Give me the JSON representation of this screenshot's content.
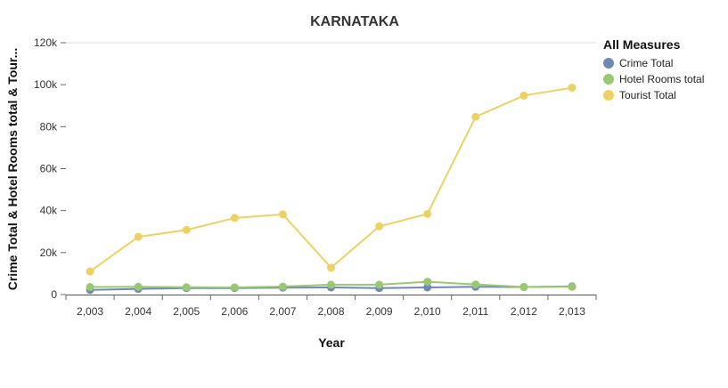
{
  "chart_data": {
    "type": "line",
    "title": "KARNATAKA",
    "xlabel": "Year",
    "ylabel": "Crime Total & Hotel Rooms total & Tour...",
    "categories": [
      "2,003",
      "2,004",
      "2,005",
      "2,006",
      "2,007",
      "2,008",
      "2,009",
      "2,010",
      "2,011",
      "2,012",
      "2,013"
    ],
    "ylim": [
      0,
      120000
    ],
    "yticks": [
      {
        "value": 0,
        "label": "0"
      },
      {
        "value": 20000,
        "label": "20k"
      },
      {
        "value": 40000,
        "label": "40k"
      },
      {
        "value": 60000,
        "label": "60k"
      },
      {
        "value": 80000,
        "label": "80k"
      },
      {
        "value": 100000,
        "label": "100k"
      },
      {
        "value": 120000,
        "label": "120k"
      }
    ],
    "grid": "horizontal-top-only",
    "legend": {
      "title": "All Measures",
      "placement": "top-right"
    },
    "series": [
      {
        "name": "Crime Total",
        "color": "#7089b4",
        "values": [
          2200,
          2700,
          3100,
          3100,
          3300,
          3400,
          3100,
          3400,
          3700,
          3600,
          3900
        ]
      },
      {
        "name": "Hotel Rooms total",
        "color": "#9ac872",
        "values": [
          3600,
          3700,
          3500,
          3400,
          3800,
          4700,
          4700,
          6100,
          4800,
          3600,
          3700
        ]
      },
      {
        "name": "Tourist Total",
        "color": "#ecd163",
        "values": [
          11000,
          27500,
          30800,
          36500,
          38200,
          12800,
          32500,
          38400,
          84700,
          94800,
          98600
        ]
      }
    ]
  }
}
